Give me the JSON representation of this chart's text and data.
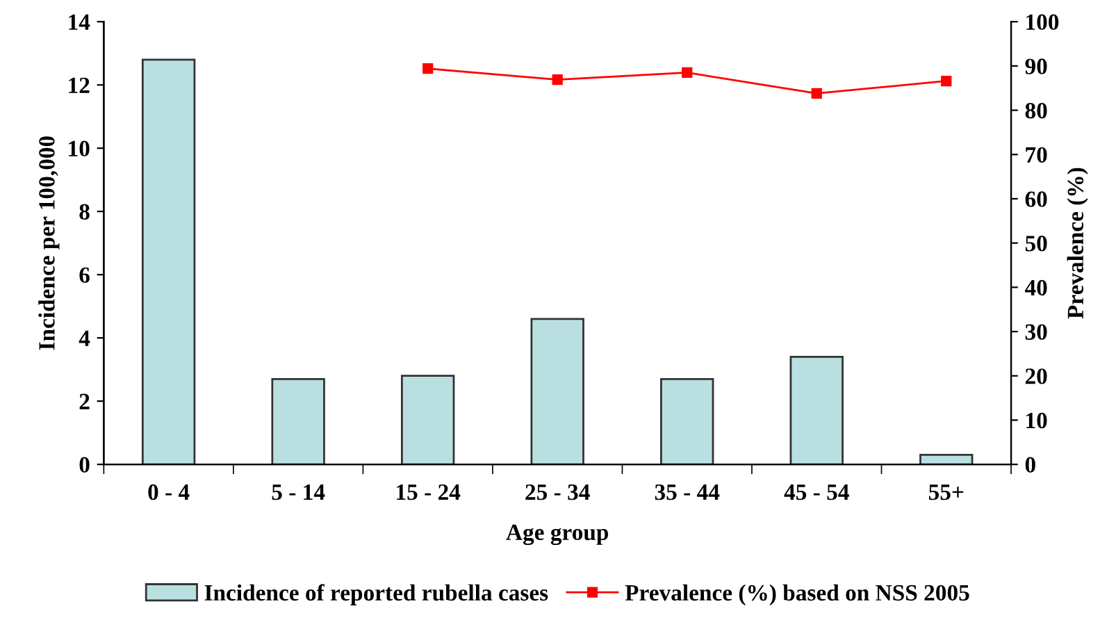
{
  "chart_data": {
    "type": "bar",
    "xlabel": "Age group",
    "ylabel": "Incidence per 100,000",
    "y2label": "Prevalence (%)",
    "categories": [
      "0 - 4",
      "5 - 14",
      "15 - 24",
      "25 - 34",
      "35 - 44",
      "45 - 54",
      "55+"
    ],
    "series": [
      {
        "name": "Incidence of reported rubella cases",
        "color": "#b9dfe1",
        "values": [
          12.8,
          2.7,
          2.8,
          4.6,
          2.7,
          3.4,
          0.3
        ]
      },
      {
        "name": "Prevalence (%) based on NSS 2005",
        "type": "line",
        "color": "#ff0000",
        "axis": "y2",
        "marker": "square",
        "values": [
          null,
          null,
          89.4,
          86.9,
          88.5,
          83.8,
          86.6
        ]
      }
    ],
    "ylim": [
      0,
      14
    ],
    "yticks": [
      0,
      2,
      4,
      6,
      8,
      10,
      12,
      14
    ],
    "y2lim": [
      0,
      100
    ],
    "y2ticks": [
      0,
      10,
      20,
      30,
      40,
      50,
      60,
      70,
      80,
      90,
      100
    ],
    "grid": false,
    "legend": "bottom"
  }
}
